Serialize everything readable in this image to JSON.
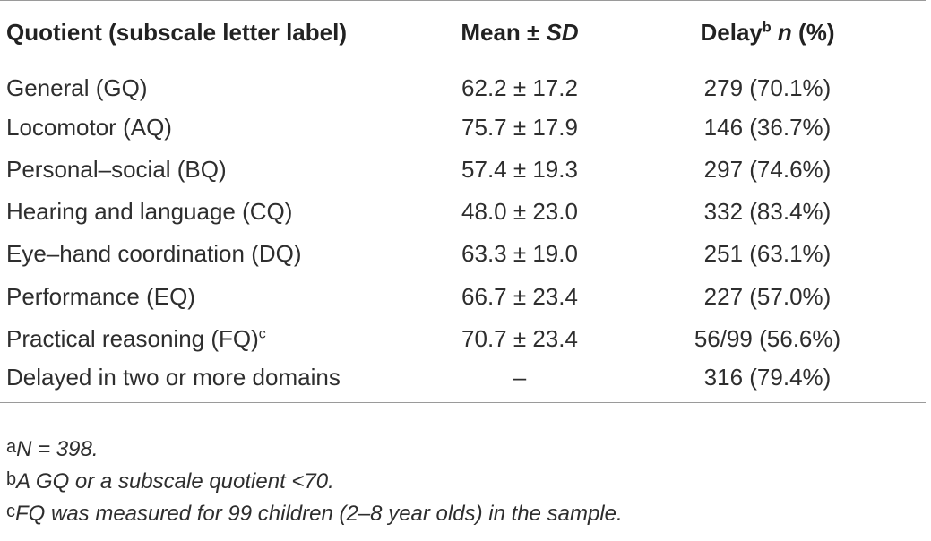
{
  "table": {
    "headers": {
      "quotient": "Quotient (subscale letter label)",
      "mean_label": "Mean ± ",
      "mean_sd": "SD",
      "delay_label": "Delay",
      "delay_sup": "b",
      "delay_n": "n",
      "delay_pct": " (%)"
    },
    "rows": [
      {
        "quotient": "General (GQ)",
        "sup": "",
        "mean": "62.2 ± 17.2",
        "delay": "279 (70.1%)"
      },
      {
        "quotient": "Locomotor (AQ)",
        "sup": "",
        "mean": "75.7 ± 17.9",
        "delay": "146 (36.7%)"
      },
      {
        "quotient": "Personal–social (BQ)",
        "sup": "",
        "mean": "57.4 ± 19.3",
        "delay": "297 (74.6%)"
      },
      {
        "quotient": "Hearing and language (CQ)",
        "sup": "",
        "mean": "48.0 ± 23.0",
        "delay": "332 (83.4%)"
      },
      {
        "quotient": "Eye–hand coordination (DQ)",
        "sup": "",
        "mean": "63.3 ± 19.0",
        "delay": "251 (63.1%)"
      },
      {
        "quotient": "Performance (EQ)",
        "sup": "",
        "mean": "66.7 ± 23.4",
        "delay": "227 (57.0%)"
      },
      {
        "quotient": "Practical reasoning (FQ)",
        "sup": "c",
        "mean": "70.7 ± 23.4",
        "delay": "56/99 (56.6%)"
      },
      {
        "quotient": "Delayed in two or more domains",
        "sup": "",
        "mean": "–",
        "delay": "316 (79.4%)"
      }
    ]
  },
  "footnotes": [
    {
      "mark": "a",
      "text": "N = 398."
    },
    {
      "mark": "b",
      "text": "A GQ or a subscale quotient <70."
    },
    {
      "mark": "c",
      "text": "FQ was measured for 99 children (2–8 year olds) in the sample."
    }
  ]
}
